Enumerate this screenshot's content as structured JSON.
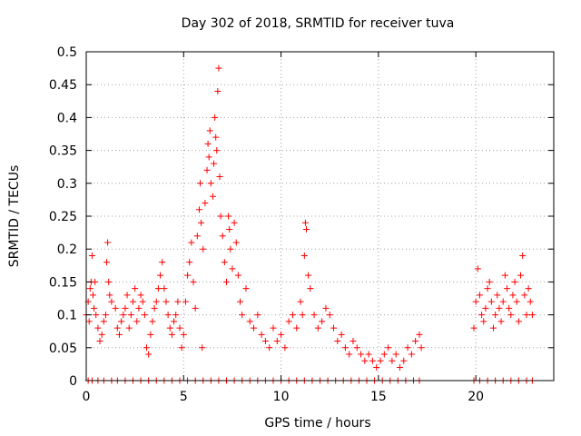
{
  "chart_data": {
    "type": "scatter",
    "title": "Day 302 of 2018, SRMTID for receiver tuva",
    "xlabel": "GPS time / hours",
    "ylabel": "SRMTID / TECUs",
    "xlim": [
      0,
      24
    ],
    "ylim": [
      0,
      0.5
    ],
    "x_ticks": [
      0,
      5,
      10,
      15,
      20
    ],
    "y_ticks": [
      0,
      0.05,
      0.1,
      0.15,
      0.2,
      0.25,
      0.3,
      0.35,
      0.4,
      0.45,
      0.5
    ],
    "x_tick_labels": [
      "0",
      "5",
      "10",
      "15",
      "20"
    ],
    "y_tick_labels": [
      "0",
      "0.05",
      "0.1",
      "0.15",
      "0.2",
      "0.25",
      "0.3",
      "0.35",
      "0.4",
      "0.45",
      "0.5"
    ],
    "grid": true,
    "marker": "plus",
    "marker_color": "#ff0000",
    "series": [
      {
        "points": [
          [
            0.0,
            0.1
          ],
          [
            0.1,
            0.12
          ],
          [
            0.15,
            0.09
          ],
          [
            0.2,
            0.14
          ],
          [
            0.25,
            0.15
          ],
          [
            0.3,
            0.19
          ],
          [
            0.35,
            0.13
          ],
          [
            0.4,
            0.11
          ],
          [
            0.45,
            0.15
          ],
          [
            0.5,
            0.1
          ],
          [
            0.6,
            0.08
          ],
          [
            0.7,
            0.06
          ],
          [
            0.8,
            0.07
          ],
          [
            0.9,
            0.09
          ],
          [
            1.0,
            0.1
          ],
          [
            1.05,
            0.18
          ],
          [
            1.1,
            0.21
          ],
          [
            1.15,
            0.15
          ],
          [
            1.2,
            0.13
          ],
          [
            1.3,
            0.12
          ],
          [
            1.5,
            0.11
          ],
          [
            1.6,
            0.08
          ],
          [
            1.7,
            0.07
          ],
          [
            1.8,
            0.09
          ],
          [
            1.9,
            0.1
          ],
          [
            2.0,
            0.11
          ],
          [
            2.1,
            0.13
          ],
          [
            2.2,
            0.08
          ],
          [
            2.3,
            0.1
          ],
          [
            2.4,
            0.12
          ],
          [
            2.5,
            0.14
          ],
          [
            2.6,
            0.09
          ],
          [
            2.7,
            0.11
          ],
          [
            2.8,
            0.13
          ],
          [
            2.9,
            0.12
          ],
          [
            3.0,
            0.1
          ],
          [
            3.1,
            0.05
          ],
          [
            3.2,
            0.04
          ],
          [
            3.3,
            0.07
          ],
          [
            3.4,
            0.09
          ],
          [
            3.5,
            0.11
          ],
          [
            3.6,
            0.12
          ],
          [
            3.7,
            0.14
          ],
          [
            3.8,
            0.16
          ],
          [
            3.9,
            0.18
          ],
          [
            4.0,
            0.14
          ],
          [
            4.1,
            0.12
          ],
          [
            4.2,
            0.1
          ],
          [
            4.3,
            0.08
          ],
          [
            4.4,
            0.07
          ],
          [
            4.5,
            0.09
          ],
          [
            4.6,
            0.1
          ],
          [
            4.7,
            0.12
          ],
          [
            4.8,
            0.08
          ],
          [
            4.9,
            0.05
          ],
          [
            5.0,
            0.07
          ],
          [
            5.1,
            0.12
          ],
          [
            5.2,
            0.16
          ],
          [
            5.3,
            0.18
          ],
          [
            5.4,
            0.21
          ],
          [
            5.5,
            0.15
          ],
          [
            5.6,
            0.11
          ],
          [
            5.7,
            0.22
          ],
          [
            5.8,
            0.26
          ],
          [
            5.85,
            0.3
          ],
          [
            5.9,
            0.24
          ],
          [
            5.95,
            0.05
          ],
          [
            6.0,
            0.2
          ],
          [
            6.1,
            0.27
          ],
          [
            6.2,
            0.32
          ],
          [
            6.25,
            0.36
          ],
          [
            6.3,
            0.34
          ],
          [
            6.35,
            0.38
          ],
          [
            6.4,
            0.3
          ],
          [
            6.5,
            0.28
          ],
          [
            6.55,
            0.33
          ],
          [
            6.6,
            0.4
          ],
          [
            6.65,
            0.37
          ],
          [
            6.7,
            0.35
          ],
          [
            6.75,
            0.44
          ],
          [
            6.8,
            0.475
          ],
          [
            6.85,
            0.31
          ],
          [
            6.9,
            0.25
          ],
          [
            7.0,
            0.22
          ],
          [
            7.1,
            0.18
          ],
          [
            7.2,
            0.15
          ],
          [
            7.3,
            0.25
          ],
          [
            7.35,
            0.23
          ],
          [
            7.4,
            0.2
          ],
          [
            7.5,
            0.17
          ],
          [
            7.6,
            0.24
          ],
          [
            7.7,
            0.21
          ],
          [
            7.8,
            0.16
          ],
          [
            7.9,
            0.12
          ],
          [
            8.0,
            0.1
          ],
          [
            8.2,
            0.14
          ],
          [
            8.4,
            0.09
          ],
          [
            8.6,
            0.08
          ],
          [
            8.8,
            0.1
          ],
          [
            9.0,
            0.07
          ],
          [
            9.2,
            0.06
          ],
          [
            9.4,
            0.05
          ],
          [
            9.6,
            0.08
          ],
          [
            9.8,
            0.06
          ],
          [
            10.0,
            0.07
          ],
          [
            10.2,
            0.05
          ],
          [
            10.4,
            0.09
          ],
          [
            10.6,
            0.1
          ],
          [
            10.8,
            0.08
          ],
          [
            11.0,
            0.12
          ],
          [
            11.1,
            0.1
          ],
          [
            11.2,
            0.19
          ],
          [
            11.25,
            0.24
          ],
          [
            11.3,
            0.23
          ],
          [
            11.4,
            0.16
          ],
          [
            11.5,
            0.14
          ],
          [
            11.7,
            0.1
          ],
          [
            11.9,
            0.08
          ],
          [
            12.1,
            0.09
          ],
          [
            12.3,
            0.11
          ],
          [
            12.5,
            0.1
          ],
          [
            12.7,
            0.08
          ],
          [
            12.9,
            0.06
          ],
          [
            13.1,
            0.07
          ],
          [
            13.3,
            0.05
          ],
          [
            13.5,
            0.04
          ],
          [
            13.7,
            0.06
          ],
          [
            13.9,
            0.05
          ],
          [
            14.1,
            0.04
          ],
          [
            14.3,
            0.03
          ],
          [
            14.5,
            0.04
          ],
          [
            14.7,
            0.03
          ],
          [
            14.9,
            0.02
          ],
          [
            15.1,
            0.03
          ],
          [
            15.3,
            0.04
          ],
          [
            15.5,
            0.05
          ],
          [
            15.7,
            0.03
          ],
          [
            15.9,
            0.04
          ],
          [
            16.1,
            0.02
          ],
          [
            16.3,
            0.03
          ],
          [
            16.5,
            0.05
          ],
          [
            16.7,
            0.04
          ],
          [
            16.9,
            0.06
          ],
          [
            17.1,
            0.07
          ],
          [
            17.2,
            0.05
          ],
          [
            19.9,
            0.08
          ],
          [
            20.0,
            0.12
          ],
          [
            20.1,
            0.17
          ],
          [
            20.2,
            0.13
          ],
          [
            20.3,
            0.1
          ],
          [
            20.4,
            0.09
          ],
          [
            20.5,
            0.11
          ],
          [
            20.6,
            0.14
          ],
          [
            20.7,
            0.15
          ],
          [
            20.8,
            0.12
          ],
          [
            20.9,
            0.08
          ],
          [
            21.0,
            0.1
          ],
          [
            21.1,
            0.13
          ],
          [
            21.2,
            0.11
          ],
          [
            21.3,
            0.09
          ],
          [
            21.4,
            0.12
          ],
          [
            21.5,
            0.16
          ],
          [
            21.6,
            0.14
          ],
          [
            21.7,
            0.11
          ],
          [
            21.8,
            0.1
          ],
          [
            21.9,
            0.13
          ],
          [
            22.0,
            0.15
          ],
          [
            22.1,
            0.12
          ],
          [
            22.2,
            0.09
          ],
          [
            22.3,
            0.16
          ],
          [
            22.4,
            0.19
          ],
          [
            22.5,
            0.13
          ],
          [
            22.6,
            0.1
          ],
          [
            22.7,
            0.14
          ],
          [
            22.8,
            0.12
          ],
          [
            22.9,
            0.1
          ]
        ]
      }
    ],
    "zero_x": [
      0.1,
      0.3,
      0.6,
      0.9,
      1.3,
      1.6,
      2.0,
      2.4,
      2.8,
      3.2,
      3.6,
      4.0,
      4.4,
      4.8,
      5.2,
      5.6,
      6.0,
      6.4,
      6.8,
      7.2,
      7.6,
      8.0,
      8.4,
      8.8,
      9.2,
      9.6,
      10.0,
      10.4,
      10.8,
      11.2,
      11.6,
      12.0,
      12.4,
      12.8,
      13.2,
      13.6,
      14.0,
      14.4,
      14.8,
      15.2,
      15.6,
      16.0,
      16.4,
      16.8,
      17.1,
      19.9,
      20.2,
      20.6,
      21.0,
      21.4,
      21.8,
      22.2,
      22.6,
      22.9
    ]
  }
}
